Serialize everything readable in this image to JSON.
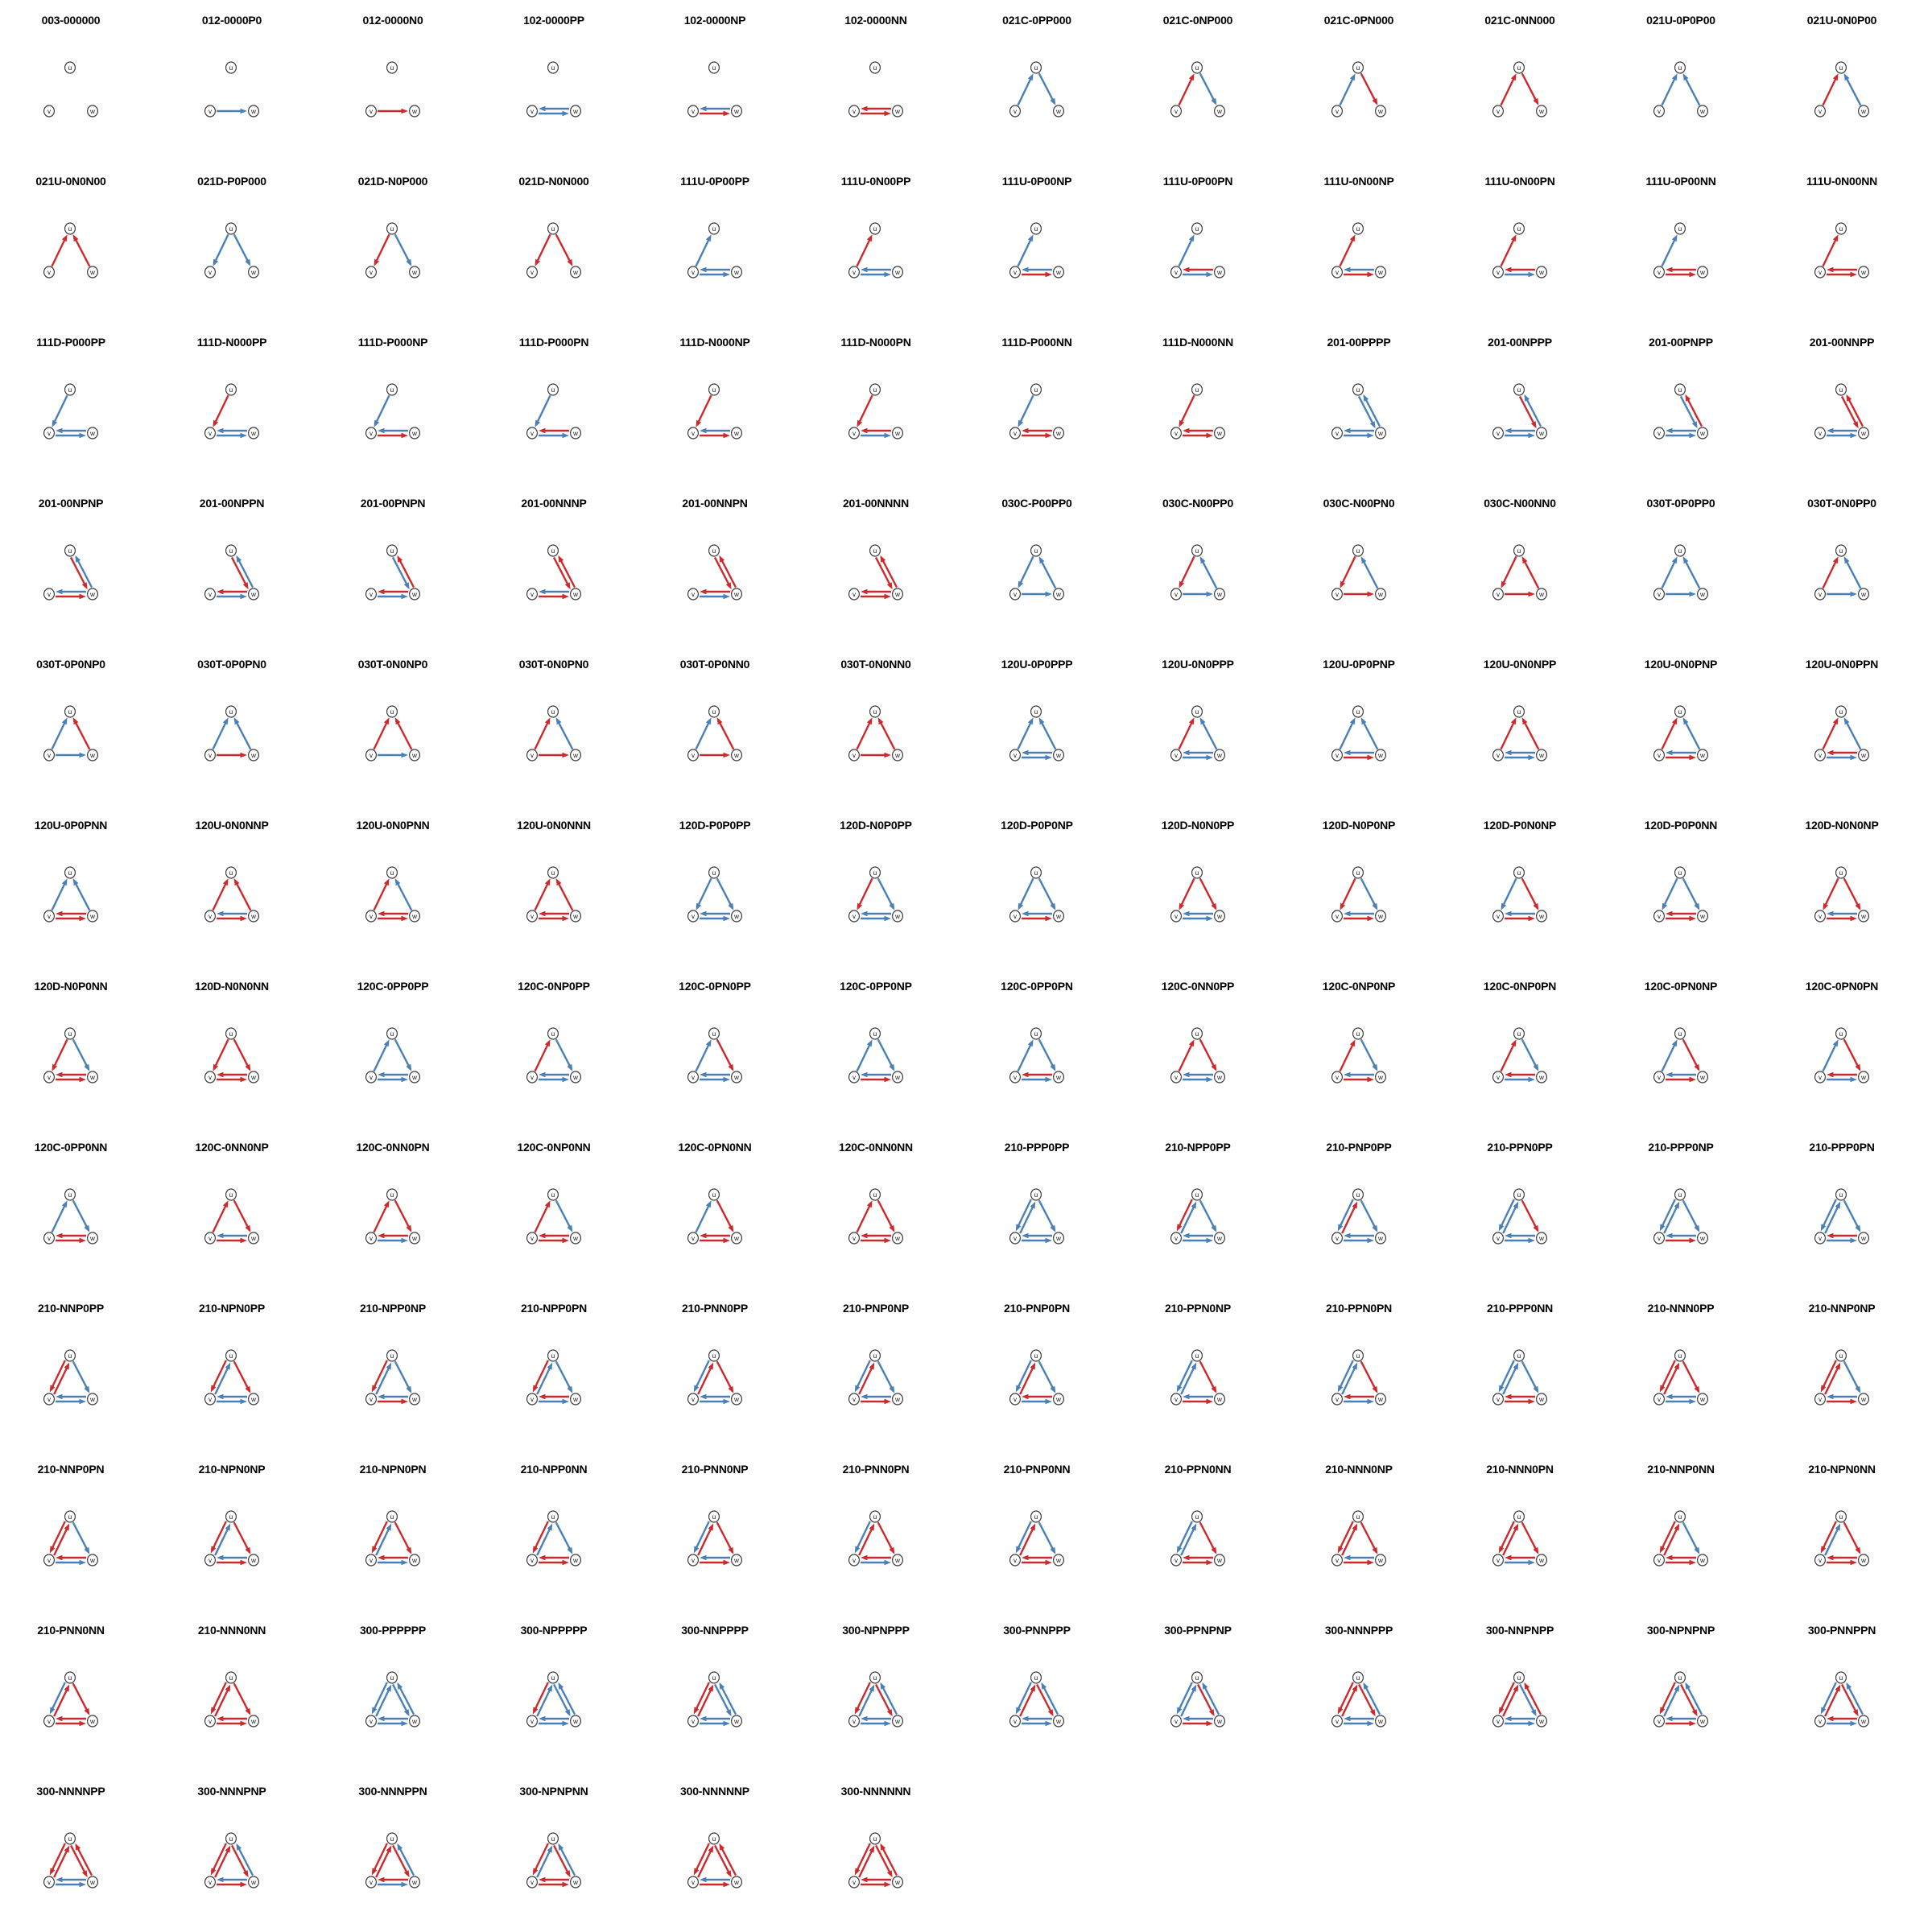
{
  "grid": {
    "rows": 12,
    "cols": 12,
    "cell_size": 200,
    "cells": [
      "003-000000",
      "012-0000P0",
      "012-0000N0",
      "102-0000PP",
      "102-0000NP",
      "102-0000NN",
      "021C-0PP000",
      "021C-0NP000",
      "021C-0PN000",
      "021C-0NN000",
      "021U-0P0P00",
      "021U-0N0P00",
      "021U-0N0N00",
      "021D-P0P000",
      "021D-N0P000",
      "021D-N0N000",
      "111U-0P00PP",
      "111U-0N00PP",
      "111U-0P00NP",
      "111U-0P00PN",
      "111U-0N00NP",
      "111U-0N00PN",
      "111U-0P00NN",
      "111U-0N00NN",
      "111D-P000PP",
      "111D-N000PP",
      "111D-P000NP",
      "111D-P000PN",
      "111D-N000NP",
      "111D-N000PN",
      "111D-P000NN",
      "111D-N000NN",
      "201-00PPPP",
      "201-00NPPP",
      "201-00PNPP",
      "201-00NNPP",
      "201-00NPNP",
      "201-00NPPN",
      "201-00PNPN",
      "201-00NNNP",
      "201-00NNPN",
      "201-00NNNN",
      "030C-P00PP0",
      "030C-N00PP0",
      "030C-N00PN0",
      "030C-N00NN0",
      "030T-0P0PP0",
      "030T-0N0PP0",
      "030T-0P0NP0",
      "030T-0P0PN0",
      "030T-0N0NP0",
      "030T-0N0PN0",
      "030T-0P0NN0",
      "030T-0N0NN0",
      "120U-0P0PPP",
      "120U-0N0PPP",
      "120U-0P0PNP",
      "120U-0N0NPP",
      "120U-0N0PNP",
      "120U-0N0PPN",
      "120U-0P0PNN",
      "120U-0N0NNP",
      "120U-0N0PNN",
      "120U-0N0NNN",
      "120D-P0P0PP",
      "120D-N0P0PP",
      "120D-P0P0NP",
      "120D-N0N0PP",
      "120D-N0P0NP",
      "120D-P0N0NP",
      "120D-P0P0NN",
      "120D-N0N0NP",
      "120D-N0P0NN",
      "120D-N0N0NN",
      "120C-0PP0PP",
      "120C-0NP0PP",
      "120C-0PN0PP",
      "120C-0PP0NP",
      "120C-0PP0PN",
      "120C-0NN0PP",
      "120C-0NP0NP",
      "120C-0NP0PN",
      "120C-0PN0NP",
      "120C-0PN0PN",
      "120C-0PP0NN",
      "120C-0NN0NP",
      "120C-0NN0PN",
      "120C-0NP0NN",
      "120C-0PN0NN",
      "120C-0NN0NN",
      "210-PPP0PP",
      "210-NPP0PP",
      "210-PNP0PP",
      "210-PPN0PP",
      "210-PPP0NP",
      "210-PPP0PN",
      "210-NNP0PP",
      "210-NPN0PP",
      "210-NPP0NP",
      "210-NPP0PN",
      "210-PNN0PP",
      "210-PNP0NP",
      "210-PNP0PN",
      "210-PPN0NP",
      "210-PPN0PN",
      "210-PPP0NN",
      "210-NNN0PP",
      "210-NNP0NP",
      "210-NNP0PN",
      "210-NPN0NP",
      "210-NPN0PN",
      "210-NPP0NN",
      "210-PNN0NP",
      "210-PNN0PN",
      "210-PNP0NN",
      "210-PPN0NN",
      "210-NNN0NP",
      "210-NNN0PN",
      "210-NNP0NN",
      "210-NPN0NN",
      "210-PNN0NN",
      "210-NNN0NN",
      "300-PPPPPP",
      "300-NPPPPP",
      "300-NNPPPP",
      "300-NPNPPP",
      "300-PNNPPP",
      "300-PPNPNP",
      "300-NNNPPP",
      "300-NNPNPP",
      "300-NPNPNP",
      "300-PNNPPN",
      "300-NNNNPP",
      "300-NNNPNP",
      "300-NNNPPN",
      "300-NPNPNN",
      "300-NNNNNP",
      "300-NNNNNN"
    ]
  },
  "graph": {
    "node_labels": [
      "u",
      "v",
      "w"
    ],
    "edge_slot_order": [
      "uv",
      "vu",
      "uw",
      "wu",
      "vw",
      "wv"
    ],
    "sign_codes": {
      "P": "positive",
      "N": "negative",
      "0": "absent"
    }
  },
  "colors": {
    "positive_edge": "#4a80ba",
    "negative_edge": "#cd2a2e",
    "node_fill": "#ffffff",
    "node_stroke": "#3c3c3c",
    "node_label": "#111111",
    "title_text": "#000000",
    "background": "#ffffff"
  }
}
